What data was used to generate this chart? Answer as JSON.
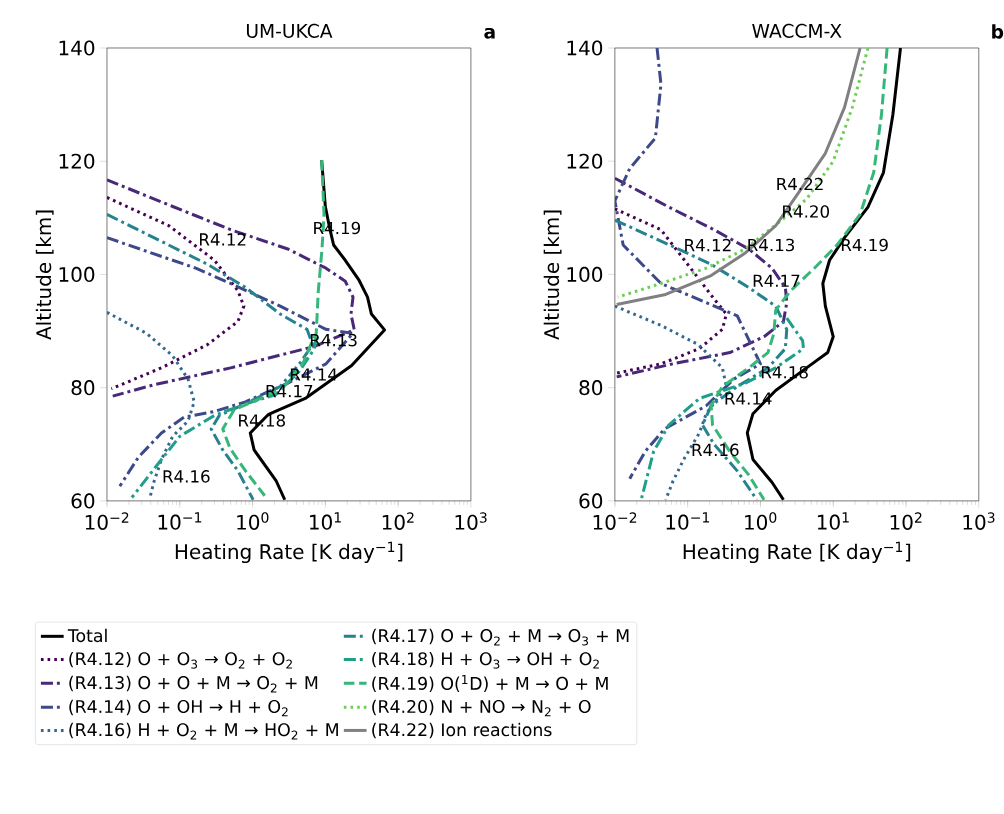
{
  "chart_data": [
    {
      "type": "line",
      "title": "UM-UKCA",
      "xlabel": "Heating Rate [K day$^{−1}$]",
      "ylabel": "Altitude [km]",
      "log": "x",
      "xlim": [
        0.01,
        1000
      ],
      "ylim": [
        60,
        140
      ],
      "xticks": [
        {
          "value": 0.01,
          "label": "10$^{−2}$"
        },
        {
          "value": 0.1,
          "label": "10$^{−1}$"
        },
        {
          "value": 1,
          "label": "10$^{0}$"
        },
        {
          "value": 10,
          "label": "10$^{1}$"
        },
        {
          "value": 100,
          "label": "10$^{2}$"
        },
        {
          "value": 1000,
          "label": "10$^{3}$"
        }
      ],
      "yticks": [
        60,
        80,
        100,
        120,
        140
      ],
      "annotations": [
        "a",
        "R4.12",
        "R4.19",
        "R4.13",
        "R4.14",
        "R4.17",
        "R4.18",
        "R4.16"
      ],
      "series": [
        {
          "color": "#000000",
          "line_style": "solid",
          "x": [
            8.9,
            10,
            11.6,
            13,
            18.8,
            28.7,
            38,
            43,
            65,
            23,
            5.3,
            1.66,
            0.93,
            1.05,
            2.1,
            2.77
          ],
          "values": [
            120.2,
            112,
            107.9,
            105.2,
            102.5,
            99.1,
            96,
            93,
            90.2,
            83.9,
            78.1,
            75.3,
            72,
            69,
            63.6,
            60.2
          ]
        },
        {
          "color": "#440154",
          "line_style": "dotted",
          "x": [
            0.01,
            0.071,
            0.3,
            0.63,
            0.76,
            0.63,
            0.24,
            0.056,
            0.0115
          ],
          "values": [
            113.6,
            108.6,
            102.5,
            97.1,
            94.4,
            91.7,
            87.6,
            83.5,
            79.8
          ]
        },
        {
          "color": "#482878",
          "line_style": "dashdot",
          "x": [
            0.01,
            0.08,
            0.5,
            3.05,
            10.2,
            18.8,
            24,
            22.5,
            25,
            7.1,
            0.5,
            0.044,
            0.012
          ],
          "values": [
            116.7,
            112,
            107.9,
            104.5,
            101.1,
            98.8,
            96,
            93,
            90.2,
            87.3,
            83.5,
            80.5,
            78.5
          ]
        },
        {
          "color": "#3e4989",
          "line_style": "dashdot",
          "x": [
            0.01,
            0.166,
            0.5,
            2.4,
            10.2,
            24,
            10.2,
            3.05,
            0.8,
            0.3,
            0.115,
            0.056,
            0.027,
            0.015
          ],
          "values": [
            106.5,
            101.1,
            98.4,
            94.4,
            90.3,
            89.6,
            84.2,
            80.8,
            77.5,
            75.8,
            74.8,
            72,
            67.7,
            62.6
          ]
        },
        {
          "color": "#31688e",
          "line_style": "dotted",
          "x": [
            0.01,
            0.035,
            0.08,
            0.13,
            0.158,
            0.13,
            0.08,
            0.056,
            0.044,
            0.039
          ],
          "values": [
            93.3,
            89.6,
            85.6,
            81.5,
            77.5,
            74.1,
            71.4,
            67.3,
            63.3,
            60.6
          ]
        },
        {
          "color": "#26828e",
          "line_style": "dashdot",
          "x": [
            0.01,
            0.044,
            0.24,
            0.8,
            2.4,
            5.6,
            6.7,
            4.4,
            2.4,
            0.91,
            0.35,
            0.27,
            0.39,
            0.63,
            1.02
          ],
          "values": [
            110.6,
            106.5,
            101.8,
            97.7,
            93,
            90.3,
            87.6,
            84.2,
            80.2,
            77.5,
            75.1,
            72.7,
            69,
            65.3,
            60.2
          ]
        },
        {
          "color": "#1f9e89",
          "line_style": "dashdot",
          "x": [
            7.5,
            7.1,
            4.4,
            2.1,
            0.8,
            0.3,
            0.1,
            0.056,
            0.022
          ],
          "values": [
            89,
            86.9,
            82.9,
            78.8,
            77.1,
            75.1,
            71.4,
            67.3,
            60.6
          ]
        },
        {
          "color": "#35b779",
          "line_style": "dashed",
          "x": [
            8.9,
            9.6,
            9.0,
            8.0,
            7.5,
            6.3,
            4.9,
            2.7,
            1.3,
            0.56,
            0.39,
            0.49,
            0.8,
            1.47
          ],
          "values": [
            120.2,
            110.6,
            104.5,
            97,
            89.6,
            87.6,
            84.2,
            80.2,
            78.1,
            76.1,
            72.7,
            69.3,
            65.3,
            60.9
          ]
        }
      ]
    },
    {
      "type": "line",
      "title": "WACCM-X",
      "xlabel": "Heating Rate [K day$^{−1}$]",
      "ylabel": "Altitude [km]",
      "log": "x",
      "legend": "bottom",
      "xlim": [
        0.01,
        1000
      ],
      "ylim": [
        60,
        140
      ],
      "xticks": [
        {
          "value": 0.01,
          "label": "10$^{−2}$"
        },
        {
          "value": 0.1,
          "label": "10$^{−1}$"
        },
        {
          "value": 1,
          "label": "10$^{0}$"
        },
        {
          "value": 10,
          "label": "10$^{1}$"
        },
        {
          "value": 100,
          "label": "10$^{2}$"
        },
        {
          "value": 1000,
          "label": "10$^{3}$"
        }
      ],
      "yticks": [
        60,
        80,
        100,
        120,
        140
      ],
      "annotations": [
        "b",
        "R4.22",
        "R4.20",
        "R4.12",
        "R4.13",
        "R4.19",
        "R4.17",
        "R4.18",
        "R4.14",
        "R4.16"
      ],
      "series": [
        {
          "name": "Total",
          "color": "#000000",
          "line_style": "solid",
          "x": [
            84,
            66,
            49,
            30,
            14.3,
            8.9,
            7.2,
            7.8,
            10,
            8.4,
            4.3,
            1.62,
            0.79,
            0.66,
            0.79,
            1.44,
            2.07
          ],
          "values": [
            140,
            128.2,
            118,
            111.9,
            106.5,
            102.5,
            98.4,
            94.4,
            89,
            86.2,
            83.5,
            79.5,
            75.4,
            72,
            67.3,
            63.3,
            60.2
          ]
        },
        {
          "name": "(R4.12) O + O$_{3}$ → O$_{2}$ + O$_{2}$",
          "color": "#440154",
          "line_style": "dotted",
          "x": [
            0.01,
            0.043,
            0.11,
            0.23,
            0.34,
            0.3,
            0.145,
            0.043,
            0.01
          ],
          "values": [
            111.6,
            107.9,
            101.1,
            95.7,
            93,
            90.3,
            86.9,
            84.2,
            82.5
          ]
        },
        {
          "name": "(R4.13) O + O + M → O$_{2}$ + M",
          "color": "#482878",
          "line_style": "dashdot",
          "x": [
            0.01,
            0.055,
            0.23,
            0.69,
            1.44,
            2.2,
            2.3,
            2.07,
            1.12,
            0.38,
            0.062,
            0.0106
          ],
          "values": [
            117,
            111.9,
            107.9,
            104.5,
            101.1,
            97.7,
            95,
            91.7,
            89,
            86.2,
            84.2,
            81.9
          ]
        },
        {
          "name": "(R4.14) O + OH → H + O$_{2}$",
          "color": "#3e4989",
          "line_style": "dashdot",
          "x": [
            0.038,
            0.043,
            0.036,
            0.016,
            0.01,
            0.013,
            0.043,
            0.48,
            1.0,
            0.43,
            0.18,
            0.048,
            0.026,
            0.016
          ],
          "values": [
            140,
            133.6,
            124.1,
            118.7,
            113,
            105.2,
            98.4,
            92.7,
            84.2,
            81.5,
            76.8,
            72.7,
            68.7,
            63.9
          ]
        },
        {
          "name": "(R4.16) H + O$_{2}$ + M → HO$_{2}$ + M",
          "color": "#31688e",
          "line_style": "dotted",
          "x": [
            0.01,
            0.043,
            0.14,
            0.3,
            0.34,
            0.18,
            0.145,
            0.088,
            0.062,
            0.05
          ],
          "values": [
            94.4,
            91,
            87.6,
            83.5,
            80.2,
            75.4,
            72,
            67.3,
            63.3,
            60.2
          ]
        },
        {
          "name": "(R4.17) O + O$_{2}$ + M → O$_{3}$ + M",
          "color": "#26828e",
          "line_style": "dashdot",
          "x": [
            0.01,
            0.043,
            0.21,
            0.69,
            1.62,
            2.3,
            2.2,
            1.27,
            0.48,
            0.21,
            0.16,
            0.23,
            0.48,
            0.89
          ],
          "values": [
            109.6,
            105.9,
            101.8,
            97.7,
            94.4,
            90.3,
            86.9,
            83.5,
            80.2,
            76.8,
            73.4,
            70,
            65.3,
            60.2
          ]
        },
        {
          "name": "(R4.18) H + O$_{3}$ → OH + O$_{2}$",
          "color": "#1f9e89",
          "line_style": "dashdot",
          "x": [
            2.3,
            3.8,
            3.9,
            1.62,
            0.62,
            0.145,
            0.055,
            0.034,
            0.023
          ],
          "values": [
            92.3,
            88.3,
            86.9,
            83.5,
            80.8,
            78.1,
            73.4,
            68.7,
            60.2
          ]
        },
        {
          "name": "(R4.19) O($^{1}$D) + M → O + M",
          "color": "#35b779",
          "line_style": "dashed",
          "x": [
            55,
            46,
            36,
            23.4,
            11.3,
            5.5,
            2.6,
            1.62,
            1.53,
            1.27,
            0.69,
            0.3,
            0.21,
            0.22,
            0.38,
            0.69,
            1.12
          ],
          "values": [
            140,
            128.2,
            118,
            110.6,
            105.2,
            101.1,
            97.1,
            93.7,
            89.6,
            86.2,
            83.5,
            80.2,
            76.8,
            73.4,
            68.7,
            64.6,
            60.2
          ]
        },
        {
          "name": "(R4.20) N + NO → N$_{2}$ + O",
          "color": "#6ece58",
          "line_style": "dotted",
          "x": [
            30,
            18.3,
            10,
            4.3,
            1.83,
            0.62,
            0.18,
            0.043,
            0.011
          ],
          "values": [
            140,
            129.5,
            120,
            113.3,
            109.3,
            104.5,
            101.1,
            98.4,
            96
          ]
        },
        {
          "name": "(R4.22) Ion reactions",
          "color": "#808080",
          "line_style": "solid",
          "x": [
            23.4,
            14.3,
            7.8,
            3.4,
            1.62,
            0.62,
            0.21,
            0.048,
            0.0106
          ],
          "values": [
            140,
            129.5,
            121.4,
            114.6,
            108.6,
            103.8,
            99.8,
            96.4,
            94.7
          ]
        }
      ]
    }
  ]
}
